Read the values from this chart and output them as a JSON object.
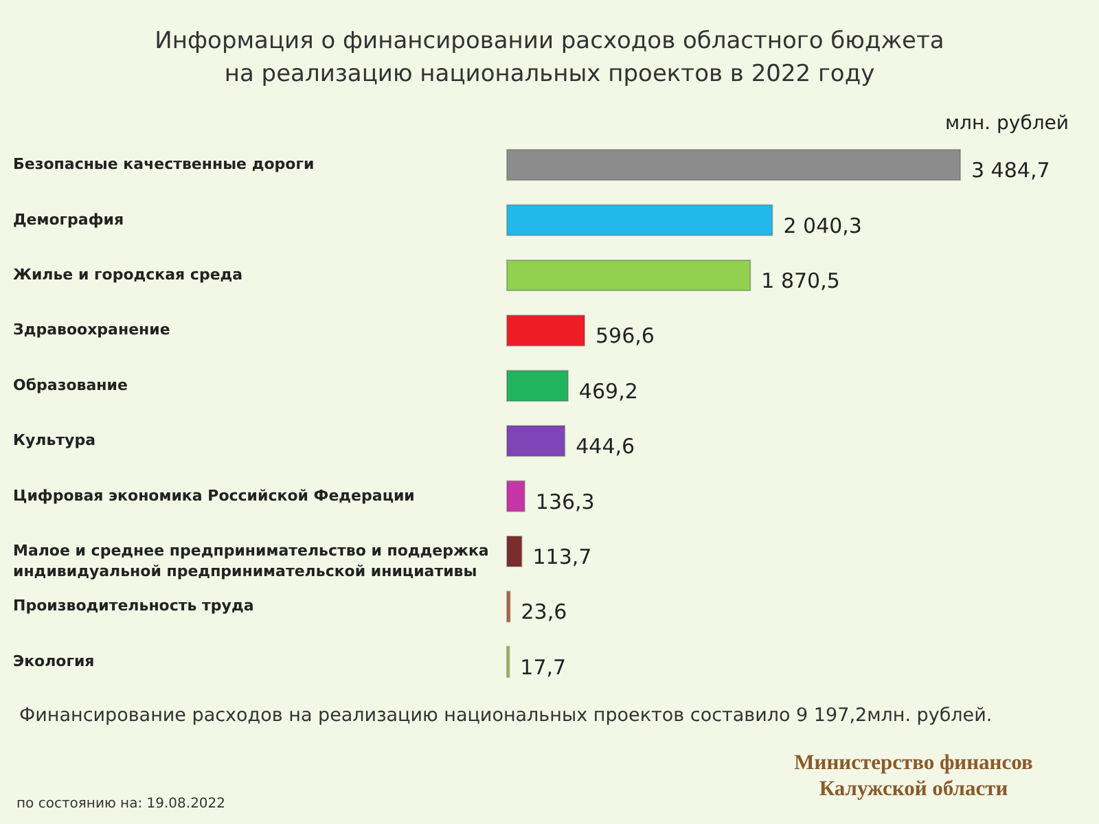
{
  "chart_data": {
    "type": "bar",
    "orientation": "horizontal",
    "title": "Информация о финансировании расходов областного бюджета на реализацию национальных проектов в 2022 году",
    "categories": [
      "Безопасные качественные дороги",
      "Демография",
      "Жилье и городская среда",
      "Здравоохранение",
      "Образование",
      "Культура",
      "Цифровая экономика Российской Федерации",
      "Малое и среднее предпринимательство и поддержка индивидуальной предпринимательской инициативы",
      "Производительность труда",
      "Экология"
    ],
    "values": [
      3484.7,
      2040.3,
      1870.5,
      596.6,
      469.2,
      444.6,
      136.3,
      113.7,
      23.6,
      17.7
    ],
    "value_labels": [
      "3 484,7",
      "2 040,3",
      "1 870,5",
      "596,6",
      "469,2",
      "444,6",
      "136,3",
      "113,7",
      "23,6",
      "17,7"
    ],
    "colors": [
      "#8c8c8c",
      "#22b8ec",
      "#92d050",
      "#ee1c24",
      "#22b35e",
      "#7f44b8",
      "#c535a8",
      "#7b2c2c",
      "#b8643c",
      "#a9c54a"
    ],
    "xlabel": "млн. рублей",
    "annotations": [
      "Финансирование  расходов на реализацию  национальных  проектов  составило 9 197,2млн. рублей.",
      "Министерство финансов Калужской области",
      "по состоянию на: 19.08.2022"
    ]
  }
}
